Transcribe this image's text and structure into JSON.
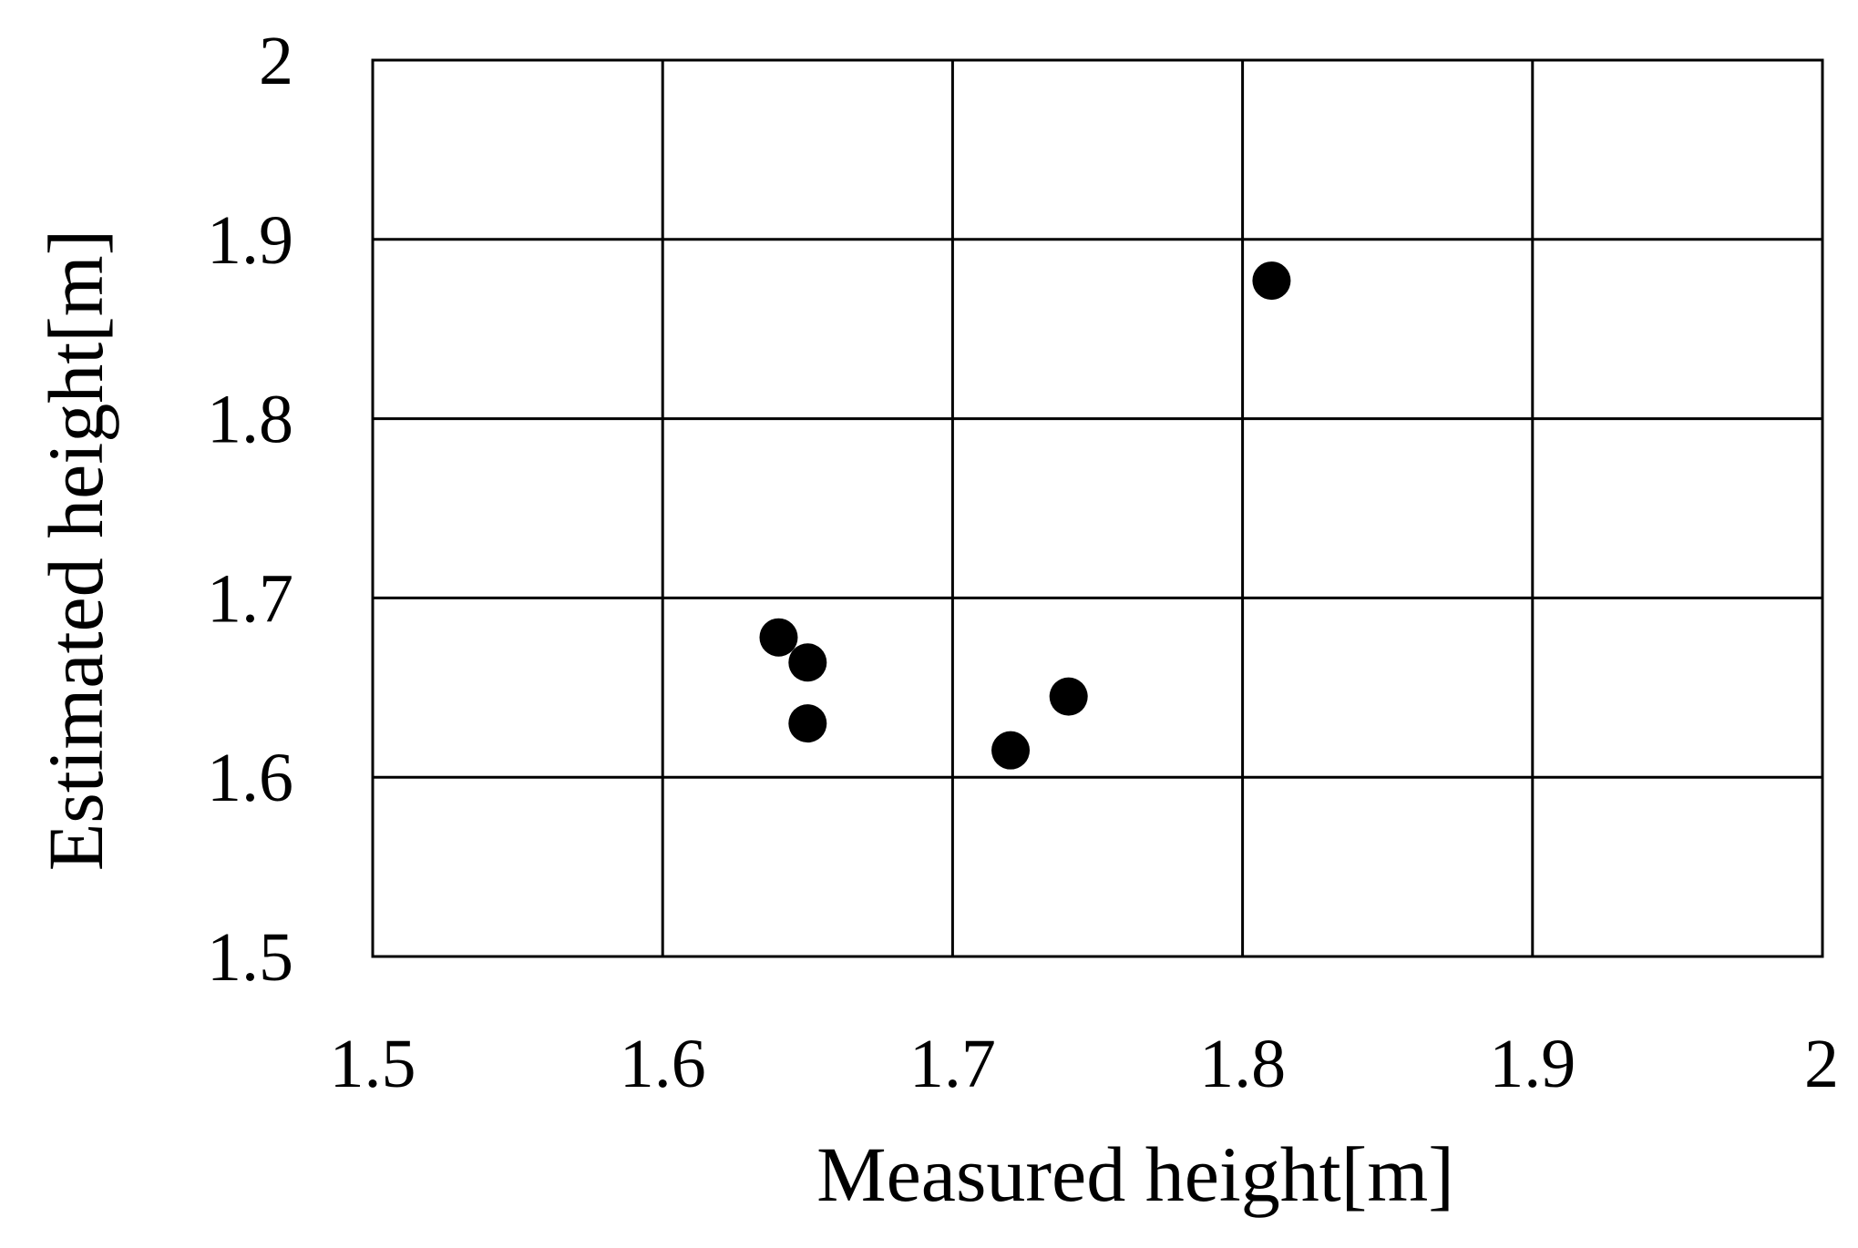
{
  "chart_data": {
    "type": "scatter",
    "title": "",
    "xlabel": "Measured height[m]",
    "ylabel": "Estimated height[m]",
    "xlim": [
      1.5,
      2.0
    ],
    "ylim": [
      1.5,
      2.0
    ],
    "xticks": [
      1.5,
      1.6,
      1.7,
      1.8,
      1.9,
      2.0
    ],
    "yticks": [
      1.5,
      1.6,
      1.7,
      1.8,
      1.9,
      2.0
    ],
    "xtick_labels": [
      "1.5",
      "1.6",
      "1.7",
      "1.8",
      "1.9",
      "2"
    ],
    "ytick_labels": [
      "1.5",
      "1.6",
      "1.7",
      "1.8",
      "1.9",
      "2"
    ],
    "grid": true,
    "legend": "none",
    "marker_color": "#000000",
    "series": [
      {
        "x": [
          1.64,
          1.65,
          1.65,
          1.72,
          1.74,
          1.81
        ],
        "y": [
          1.678,
          1.664,
          1.63,
          1.615,
          1.645,
          1.877
        ]
      }
    ]
  }
}
